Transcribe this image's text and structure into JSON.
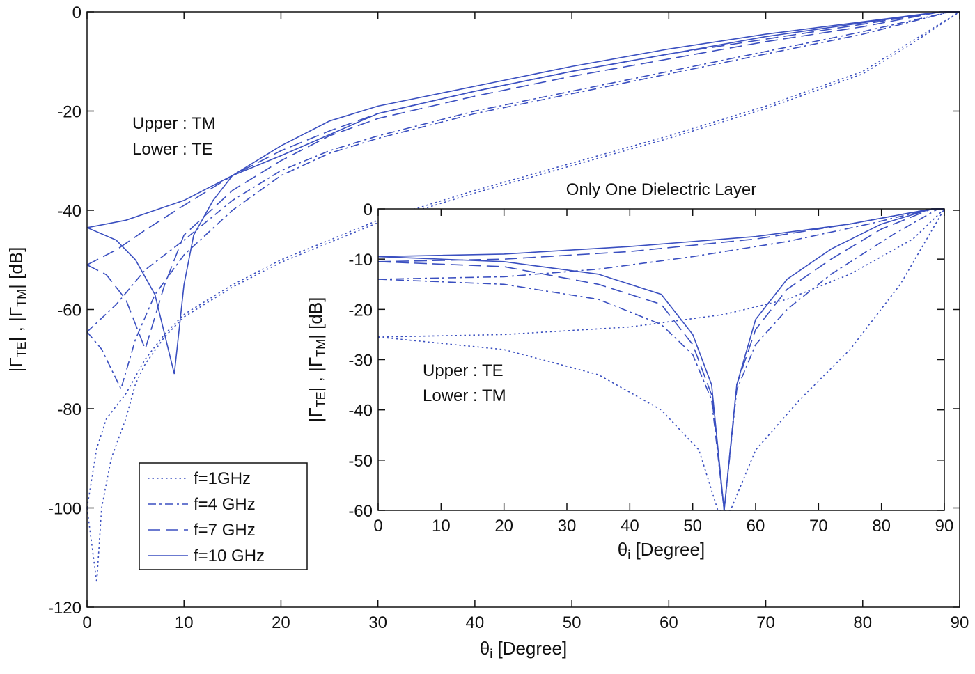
{
  "chart_data": [
    {
      "type": "line",
      "xlabel": [
        "θ",
        "i",
        " [Degree]"
      ],
      "ylabel": [
        "|Γ",
        "TE",
        "| , |Γ",
        "TM",
        "|  [dB]"
      ],
      "annotations": [
        "Upper : TM",
        "Lower : TE"
      ],
      "xlim": [
        0,
        90
      ],
      "xticks": [
        0,
        10,
        20,
        30,
        40,
        50,
        60,
        70,
        80,
        90
      ],
      "ylim": [
        -120,
        0
      ],
      "yticks": [
        -120,
        -100,
        -80,
        -60,
        -40,
        -20,
        0
      ],
      "legend": "lower left",
      "series": [
        {
          "name": "f=1GHz",
          "color": "#3a4fc0",
          "dash": "dotted",
          "x": [
            0,
            1,
            2,
            4,
            6,
            8,
            10,
            15,
            20,
            25,
            30,
            40,
            50,
            60,
            70,
            80,
            85,
            90
          ],
          "values": [
            -100,
            -88,
            -82,
            -77,
            -70,
            -65,
            -61,
            -55,
            -50,
            -46,
            -42,
            -36,
            -30.5,
            -25,
            -19,
            -12,
            -6,
            0
          ]
        },
        {
          "name": "f=4 GHz",
          "color": "#3a4fc0",
          "dash": "dashdot",
          "x": [
            0,
            3,
            6,
            10,
            15,
            20,
            25,
            30,
            40,
            50,
            60,
            70,
            80,
            89,
            90
          ],
          "values": [
            -64.5,
            -59,
            -52,
            -46,
            -38,
            -32,
            -28,
            -25,
            -20,
            -16,
            -12,
            -8,
            -4,
            0,
            0
          ]
        },
        {
          "name": "f=7 GHz",
          "color": "#3a4fc0",
          "dash": "dashed",
          "x": [
            0,
            3,
            6,
            10,
            15,
            20,
            25,
            30,
            40,
            50,
            60,
            70,
            80,
            88,
            90
          ],
          "values": [
            -51,
            -48,
            -44,
            -39,
            -33,
            -28,
            -24,
            -20.5,
            -16,
            -12,
            -8.5,
            -5.5,
            -2.5,
            0,
            0
          ]
        },
        {
          "name": "f=10 GHz",
          "color": "#3a4fc0",
          "dash": "solid",
          "x": [
            0,
            4,
            10,
            15,
            20,
            25,
            30,
            40,
            50,
            60,
            70,
            80,
            88,
            90
          ],
          "values": [
            -43.5,
            -42,
            -38,
            -33,
            -27,
            -22,
            -19,
            -15,
            -11,
            -7.5,
            -4.5,
            -2,
            0,
            0
          ]
        },
        {
          "color": "#3a4fc0",
          "dash": "dotted",
          "x": [
            0,
            1,
            1.5,
            2.5,
            4,
            5,
            6,
            8,
            10,
            15,
            20,
            25,
            30,
            40,
            50,
            60,
            70,
            80,
            85,
            90
          ],
          "values": [
            -100,
            -115,
            -100,
            -90,
            -82,
            -75,
            -71,
            -65.5,
            -61.5,
            -55.5,
            -50.5,
            -46.5,
            -42.5,
            -36.5,
            -31,
            -25.5,
            -19.5,
            -12.5,
            -6.5,
            0
          ]
        },
        {
          "color": "#3a4fc0",
          "dash": "dashdot",
          "x": [
            0,
            1.5,
            3.5,
            5,
            7,
            10,
            15,
            20,
            25,
            30,
            40,
            50,
            60,
            70,
            80,
            89,
            90
          ],
          "values": [
            -64.5,
            -68,
            -76,
            -66,
            -57,
            -49,
            -40,
            -33,
            -28.5,
            -25.5,
            -20.5,
            -16.5,
            -12.5,
            -8.5,
            -4.5,
            0,
            0
          ]
        },
        {
          "color": "#3a4fc0",
          "dash": "dashed",
          "x": [
            0,
            2,
            4,
            6,
            8,
            10,
            15,
            20,
            25,
            30,
            40,
            50,
            60,
            70,
            80,
            88,
            90
          ],
          "values": [
            -51,
            -53,
            -58,
            -68,
            -55,
            -45,
            -36,
            -30,
            -25,
            -21.5,
            -17,
            -13,
            -9.5,
            -6,
            -3,
            0,
            0
          ]
        },
        {
          "color": "#3a4fc0",
          "dash": "solid",
          "x": [
            0,
            3,
            5,
            7,
            9,
            10,
            11,
            13,
            15,
            20,
            30,
            40,
            50,
            60,
            70,
            80,
            88,
            90
          ],
          "values": [
            -43.5,
            -46,
            -50,
            -57,
            -73,
            -55,
            -45,
            -38,
            -33,
            -29,
            -20.5,
            -16,
            -12,
            -8.5,
            -5,
            -2.2,
            0,
            0
          ]
        }
      ]
    },
    {
      "type": "line",
      "title": "Only One Dielectric Layer",
      "xlabel": [
        "θ",
        "i",
        " [Degree]"
      ],
      "ylabel": [
        "|Γ",
        "TE",
        "| , |Γ",
        "TM",
        "|  [dB]"
      ],
      "annotations": [
        "Upper : TE",
        "Lower : TM"
      ],
      "xlim": [
        0,
        90
      ],
      "xticks": [
        0,
        10,
        20,
        30,
        40,
        50,
        60,
        70,
        80,
        90
      ],
      "ylim": [
        -60,
        0
      ],
      "yticks": [
        -60,
        -50,
        -40,
        -30,
        -20,
        -10,
        0
      ],
      "series": [
        {
          "color": "#3a4fc0",
          "dash": "dotted",
          "x": [
            0,
            20,
            40,
            55,
            65,
            75,
            85,
            90
          ],
          "values": [
            -25.5,
            -25,
            -23.5,
            -21,
            -18,
            -13,
            -6,
            0
          ]
        },
        {
          "color": "#3a4fc0",
          "dash": "dashdot",
          "x": [
            0,
            20,
            35,
            50,
            65,
            78,
            88,
            90
          ],
          "values": [
            -14,
            -13.5,
            -12,
            -9.5,
            -6.5,
            -3,
            0,
            0
          ]
        },
        {
          "color": "#3a4fc0",
          "dash": "dashed",
          "x": [
            0,
            20,
            40,
            60,
            75,
            88,
            90
          ],
          "values": [
            -10.5,
            -10,
            -8.5,
            -6,
            -3,
            0,
            0
          ]
        },
        {
          "color": "#3a4fc0",
          "dash": "solid",
          "x": [
            0,
            20,
            40,
            60,
            75,
            88,
            90
          ],
          "values": [
            -9.5,
            -9,
            -7.5,
            -5.5,
            -3,
            0,
            0
          ]
        },
        {
          "color": "#3a4fc0",
          "dash": "dotted",
          "x": [
            0,
            20,
            35,
            45,
            51,
            54,
            56,
            60,
            67,
            75,
            83,
            90
          ],
          "values": [
            -25.5,
            -28,
            -33,
            -40,
            -48,
            -60,
            -60,
            -48,
            -38,
            -28,
            -15,
            0
          ]
        },
        {
          "color": "#3a4fc0",
          "dash": "dashdot",
          "x": [
            0,
            20,
            35,
            45,
            50,
            53,
            55,
            57,
            60,
            65,
            72,
            82,
            89,
            90
          ],
          "values": [
            -14,
            -15,
            -18,
            -23,
            -29,
            -38,
            -60,
            -36,
            -27,
            -20,
            -13,
            -5,
            0,
            0
          ]
        },
        {
          "color": "#3a4fc0",
          "dash": "dashed",
          "x": [
            0,
            20,
            35,
            45,
            50,
            53,
            55,
            57,
            60,
            65,
            72,
            80,
            88,
            90
          ],
          "values": [
            -10.5,
            -11.5,
            -15,
            -19,
            -27,
            -37,
            -60,
            -35,
            -24,
            -16,
            -10,
            -4,
            0,
            0
          ]
        },
        {
          "color": "#3a4fc0",
          "dash": "solid",
          "x": [
            0,
            20,
            35,
            45,
            50,
            53,
            55,
            57,
            60,
            65,
            72,
            80,
            88,
            90
          ],
          "values": [
            -9.5,
            -10.5,
            -13,
            -17,
            -25,
            -35,
            -60,
            -35,
            -22,
            -14,
            -8,
            -3,
            0,
            0
          ]
        }
      ]
    }
  ]
}
